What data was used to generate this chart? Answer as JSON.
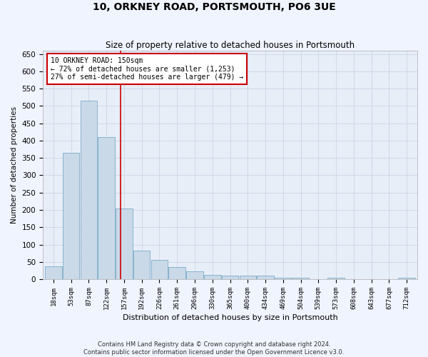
{
  "title": "10, ORKNEY ROAD, PORTSMOUTH, PO6 3UE",
  "subtitle": "Size of property relative to detached houses in Portsmouth",
  "xlabel": "Distribution of detached houses by size in Portsmouth",
  "ylabel": "Number of detached properties",
  "categories": [
    "18sqm",
    "53sqm",
    "87sqm",
    "122sqm",
    "157sqm",
    "192sqm",
    "226sqm",
    "261sqm",
    "296sqm",
    "330sqm",
    "365sqm",
    "400sqm",
    "434sqm",
    "469sqm",
    "504sqm",
    "539sqm",
    "573sqm",
    "608sqm",
    "643sqm",
    "677sqm",
    "712sqm"
  ],
  "values": [
    37,
    365,
    515,
    410,
    205,
    83,
    55,
    35,
    22,
    13,
    10,
    10,
    10,
    5,
    5,
    0,
    5,
    0,
    0,
    0,
    5
  ],
  "bar_color": "#c9d9e8",
  "bar_edge_color": "#7aaac8",
  "property_label": "10 ORKNEY ROAD: 150sqm",
  "annotation_line1": "← 72% of detached houses are smaller (1,253)",
  "annotation_line2": "27% of semi-detached houses are larger (479) →",
  "annotation_box_color": "#ffffff",
  "annotation_box_edge": "#cc0000",
  "vline_color": "#cc0000",
  "grid_color": "#d0d8e8",
  "background_color": "#e8eef8",
  "fig_background_color": "#f0f4ff",
  "footnote1": "Contains HM Land Registry data © Crown copyright and database right 2024.",
  "footnote2": "Contains public sector information licensed under the Open Government Licence v3.0.",
  "ylim": [
    0,
    660
  ],
  "yticks": [
    0,
    50,
    100,
    150,
    200,
    250,
    300,
    350,
    400,
    450,
    500,
    550,
    600,
    650
  ]
}
